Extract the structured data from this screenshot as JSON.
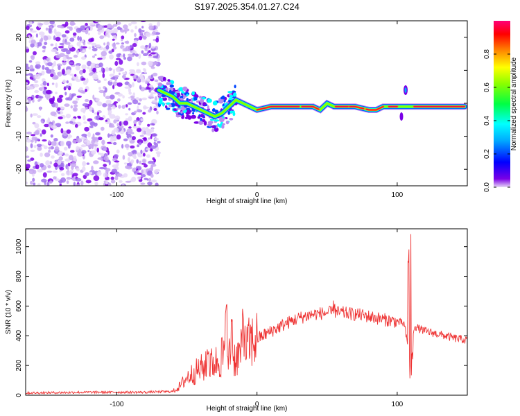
{
  "chart_data": [
    {
      "type": "heatmap",
      "title": "S197.2025.354.01.27.C24",
      "xlabel": "Height of straight line (km)",
      "ylabel": "Frequency (Hz)",
      "xlim": [
        -165,
        150
      ],
      "ylim": [
        -25,
        25
      ],
      "xticks": [
        -100,
        0,
        100
      ],
      "yticks": [
        -20,
        -10,
        0,
        10,
        20
      ],
      "noise_region_x": [
        -165,
        -70
      ],
      "carrier_track": {
        "x": [
          -70,
          -65,
          -60,
          -55,
          -50,
          -45,
          -40,
          -35,
          -30,
          -25,
          -20,
          -15,
          -10,
          -5,
          0,
          10,
          20,
          30,
          40,
          45,
          50,
          55,
          60,
          70,
          80,
          85,
          90,
          100,
          110,
          120,
          130,
          140,
          148
        ],
        "freq": [
          4,
          3,
          2,
          0,
          0,
          -1,
          -2,
          -3,
          -4,
          -3,
          -1,
          1,
          0,
          -1,
          -2,
          -1,
          -1,
          -1,
          -1,
          -2,
          0,
          -1,
          -1,
          -1,
          -2,
          -2,
          -1,
          -1,
          -1,
          -1,
          -1,
          -1,
          -1
        ]
      },
      "colorbar": {
        "label": "Normalized spectral amplitude",
        "ticks": [
          0.0,
          0.2,
          0.4,
          0.6,
          0.8
        ],
        "range": [
          0,
          1
        ]
      }
    },
    {
      "type": "line",
      "xlabel": "Height of straight line (km)",
      "ylabel": "SNR (10 * v/v)",
      "xlim": [
        -165,
        150
      ],
      "ylim": [
        0,
        1120
      ],
      "xticks": [
        -100,
        0,
        100
      ],
      "yticks": [
        0,
        200,
        400,
        600,
        800,
        1000
      ],
      "series": [
        {
          "name": "SNR",
          "color": "#ee3333",
          "envelope": {
            "x": [
              -165,
              -120,
              -80,
              -60,
              -55,
              -50,
              -40,
              -30,
              -20,
              -15,
              -10,
              -5,
              0,
              10,
              20,
              30,
              40,
              50,
              60,
              70,
              80,
              90,
              100,
              105,
              108,
              110,
              112,
              115,
              120,
              130,
              140,
              150
            ],
            "value": [
              15,
              20,
              20,
              25,
              60,
              120,
              180,
              220,
              260,
              250,
              300,
              350,
              380,
              430,
              480,
              520,
              545,
              555,
              555,
              545,
              530,
              510,
              495,
              480,
              300,
              180,
              470,
              450,
              430,
              410,
              385,
              370
            ]
          },
          "spikes": [
            {
              "x": -35,
              "value": 320
            },
            {
              "x": -25,
              "value": 400
            },
            {
              "x": -22,
              "value": 620
            },
            {
              "x": -18,
              "value": 560
            },
            {
              "x": -10,
              "value": 600
            },
            {
              "x": 55,
              "value": 640
            },
            {
              "x": 108,
              "value": 1000
            },
            {
              "x": 110,
              "value": 1120
            }
          ]
        }
      ]
    }
  ]
}
